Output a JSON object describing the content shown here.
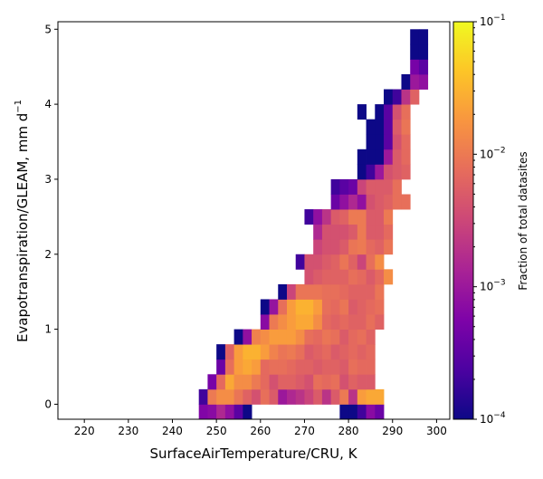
{
  "chart_data": {
    "type": "heatmap",
    "xlabel": "SurfaceAirTemperature/CRU,  K",
    "ylabel": "Evapotranspiration/GLEAM,  mm d",
    "ylabel_superscript": "−1",
    "xlim": [
      214,
      303
    ],
    "ylim": [
      -0.2,
      5.1
    ],
    "xticks": [
      220,
      230,
      240,
      250,
      260,
      270,
      280,
      290,
      300
    ],
    "yticks": [
      0,
      1,
      2,
      3,
      4,
      5
    ],
    "bin_width_x": 2,
    "bin_height_y": 0.2,
    "colormap": "plasma",
    "colorbar": {
      "label": "Fraction of total datasites",
      "scale": "log",
      "min": 0.0001,
      "max": 0.1,
      "ticks": [
        {
          "value": 0.1,
          "base": "10",
          "exp": "−1"
        },
        {
          "value": 0.01,
          "base": "10",
          "exp": "−2"
        },
        {
          "value": 0.001,
          "base": "10",
          "exp": "−3"
        },
        {
          "value": 0.0001,
          "base": "10",
          "exp": "−4"
        }
      ]
    },
    "rows": [
      {
        "y": -0.1,
        "x_start": 246,
        "values": [
          0.0006,
          0.0007,
          0.0015,
          0.0008,
          0.0003,
          0.0001,
          null,
          null,
          null,
          null,
          null,
          null,
          null,
          null,
          null,
          null,
          0.0001,
          0.0001,
          0.0002,
          0.0007,
          0.0004
        ]
      },
      {
        "y": 0.1,
        "x_start": 246,
        "values": [
          0.0002,
          0.01,
          0.015,
          0.015,
          0.009,
          0.006,
          0.004,
          0.008,
          0.005,
          0.001,
          0.0015,
          0.002,
          0.003,
          0.005,
          0.002,
          0.005,
          0.01,
          0.002,
          0.02,
          0.025,
          0.025
        ]
      },
      {
        "y": 0.3,
        "x_start": 248,
        "values": [
          0.0005,
          0.007,
          0.025,
          0.015,
          0.015,
          0.01,
          0.007,
          0.004,
          0.006,
          0.006,
          0.005,
          0.004,
          0.008,
          0.007,
          0.008,
          0.004,
          0.006,
          0.005,
          0.005
        ]
      },
      {
        "y": 0.5,
        "x_start": 250,
        "values": [
          0.0004,
          0.008,
          0.02,
          0.025,
          0.02,
          0.007,
          0.008,
          0.008,
          0.007,
          0.006,
          0.006,
          0.005,
          0.006,
          0.006,
          0.005,
          0.008,
          0.007,
          0.007
        ]
      },
      {
        "y": 0.7,
        "x_start": 250,
        "values": [
          0.0001,
          0.006,
          0.02,
          0.03,
          0.03,
          0.02,
          0.012,
          0.009,
          0.01,
          0.008,
          0.005,
          0.006,
          0.007,
          0.005,
          0.006,
          0.007,
          0.006,
          0.007
        ]
      },
      {
        "y": 0.9,
        "x_start": 254,
        "values": [
          0.0001,
          0.0008,
          0.012,
          0.015,
          0.02,
          0.02,
          0.02,
          0.015,
          0.008,
          0.007,
          0.009,
          0.008,
          0.005,
          0.007,
          0.008,
          0.006
        ]
      },
      {
        "y": 1.1,
        "x_start": 260,
        "values": [
          0.0007,
          0.01,
          0.015,
          0.02,
          0.025,
          0.025,
          0.015,
          0.007,
          0.006,
          0.007,
          0.006,
          0.006,
          0.008,
          0.006
        ]
      },
      {
        "y": 1.3,
        "x_start": 260,
        "values": [
          0.0001,
          0.0009,
          0.008,
          0.02,
          0.03,
          0.03,
          0.02,
          0.008,
          0.007,
          0.009,
          0.005,
          0.006,
          0.007,
          0.008
        ]
      },
      {
        "y": 1.5,
        "x_start": 264,
        "values": [
          0.0001,
          0.003,
          0.009,
          0.009,
          0.009,
          0.008,
          0.008,
          0.007,
          0.006,
          0.006,
          0.006,
          0.009
        ]
      },
      {
        "y": 1.7,
        "x_start": 270,
        "values": [
          0.004,
          0.005,
          0.006,
          0.006,
          0.006,
          0.008,
          0.007,
          0.005,
          0.007,
          0.015
        ]
      },
      {
        "y": 1.9,
        "x_start": 268,
        "values": [
          0.0002,
          0.004,
          0.004,
          0.005,
          0.006,
          0.009,
          0.006,
          0.003,
          0.008,
          0.015
        ]
      },
      {
        "y": 2.1,
        "x_start": 272,
        "values": [
          0.003,
          0.004,
          0.004,
          0.005,
          0.009,
          0.01,
          0.007,
          0.006,
          0.009
        ]
      },
      {
        "y": 2.3,
        "x_start": 272,
        "values": [
          0.0015,
          0.004,
          0.004,
          0.004,
          0.005,
          0.01,
          0.005,
          0.005,
          0.007
        ]
      },
      {
        "y": 2.5,
        "x_start": 270,
        "values": [
          0.0002,
          0.0008,
          0.002,
          0.005,
          0.006,
          0.01,
          0.01,
          0.005,
          0.005,
          0.01
        ]
      },
      {
        "y": 2.7,
        "x_start": 276,
        "values": [
          0.0004,
          0.0008,
          0.0015,
          0.0008,
          0.004,
          0.005,
          0.006,
          0.008,
          0.008
        ]
      },
      {
        "y": 2.9,
        "x_start": 276,
        "values": [
          0.0002,
          0.0003,
          0.0004,
          0.003,
          0.005,
          0.005,
          0.005,
          0.008
        ]
      },
      {
        "y": 3.1,
        "x_start": 282,
        "values": [
          0.0001,
          0.0002,
          0.001,
          0.004,
          0.005,
          0.006
        ]
      },
      {
        "y": 3.3,
        "x_start": 282,
        "values": [
          0.0001,
          0.0001,
          0.0001,
          0.001,
          0.005,
          0.007
        ]
      },
      {
        "y": 3.5,
        "x_start": 284,
        "values": [
          0.0001,
          0.0001,
          0.0003,
          0.004,
          0.007
        ]
      },
      {
        "y": 3.7,
        "x_start": 284,
        "values": [
          0.0001,
          0.0001,
          0.0003,
          0.005,
          0.009
        ]
      },
      {
        "y": 3.9,
        "x_start": 282,
        "values": [
          0.0001,
          null,
          0.0001,
          0.0003,
          0.004,
          0.008
        ]
      },
      {
        "y": 4.1,
        "x_start": 288,
        "values": [
          0.0001,
          0.0002,
          0.002,
          0.006
        ]
      },
      {
        "y": 4.3,
        "x_start": 292,
        "values": [
          0.0001,
          0.001,
          0.0008
        ]
      },
      {
        "y": 4.5,
        "x_start": 294,
        "values": [
          0.0005,
          0.0003
        ]
      },
      {
        "y": 4.7,
        "x_start": 294,
        "values": [
          0.0001,
          0.0001
        ]
      },
      {
        "y": 4.9,
        "x_start": 294,
        "values": [
          0.0001,
          0.0001
        ]
      }
    ]
  }
}
